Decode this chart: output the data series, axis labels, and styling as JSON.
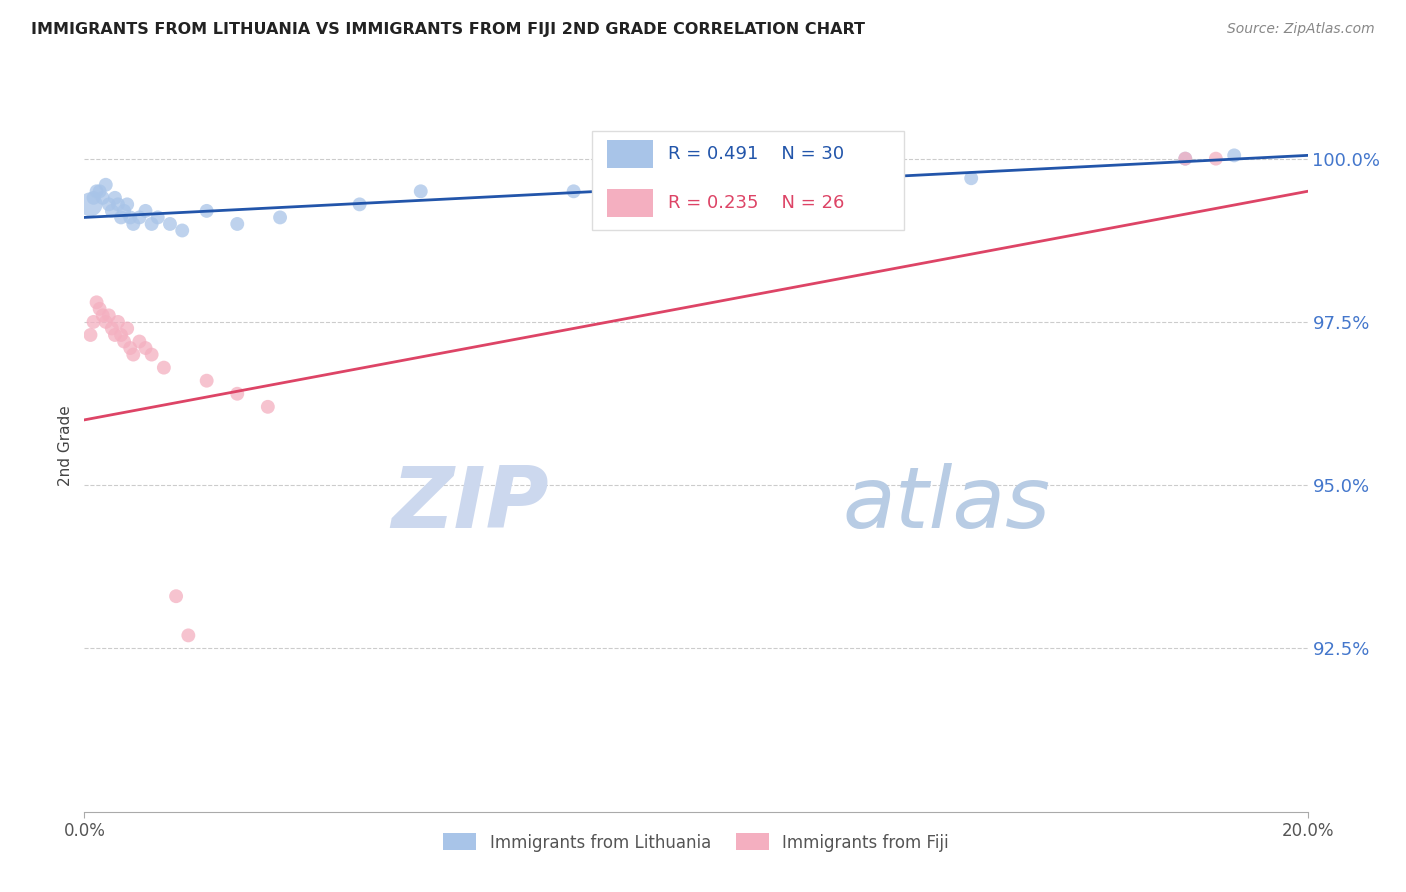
{
  "title": "IMMIGRANTS FROM LITHUANIA VS IMMIGRANTS FROM FIJI 2ND GRADE CORRELATION CHART",
  "source": "Source: ZipAtlas.com",
  "ylabel": "2nd Grade",
  "ytick_values": [
    100.0,
    97.5,
    95.0,
    92.5
  ],
  "xmin": 0.0,
  "xmax": 20.0,
  "ymin": 90.0,
  "ymax": 101.2,
  "legend_label1": "Immigrants from Lithuania",
  "legend_label2": "Immigrants from Fiji",
  "blue_color": "#a8c4e8",
  "pink_color": "#f4afc0",
  "blue_line_color": "#2255aa",
  "pink_line_color": "#dd4466",
  "blue_scatter_x": [
    0.1,
    0.15,
    0.2,
    0.25,
    0.3,
    0.35,
    0.4,
    0.45,
    0.5,
    0.55,
    0.6,
    0.65,
    0.7,
    0.75,
    0.8,
    0.9,
    1.0,
    1.1,
    1.2,
    1.4,
    1.6,
    2.0,
    2.5,
    3.2,
    4.5,
    5.5,
    8.0,
    14.5,
    18.0,
    18.8
  ],
  "blue_scatter_y": [
    99.3,
    99.4,
    99.5,
    99.5,
    99.4,
    99.6,
    99.3,
    99.2,
    99.4,
    99.3,
    99.1,
    99.2,
    99.3,
    99.1,
    99.0,
    99.1,
    99.2,
    99.0,
    99.1,
    99.0,
    98.9,
    99.2,
    99.0,
    99.1,
    99.3,
    99.5,
    99.5,
    99.7,
    100.0,
    100.05
  ],
  "blue_scatter_sizes": [
    60,
    20,
    20,
    20,
    20,
    20,
    20,
    20,
    20,
    20,
    20,
    20,
    20,
    20,
    20,
    20,
    20,
    20,
    20,
    20,
    20,
    20,
    20,
    20,
    20,
    20,
    20,
    20,
    20,
    20
  ],
  "pink_scatter_x": [
    0.1,
    0.15,
    0.2,
    0.25,
    0.3,
    0.35,
    0.4,
    0.45,
    0.5,
    0.55,
    0.6,
    0.65,
    0.7,
    0.75,
    0.8,
    0.9,
    1.0,
    1.1,
    1.3,
    1.5,
    1.7,
    2.0,
    2.5,
    3.0,
    18.0,
    18.5
  ],
  "pink_scatter_y": [
    97.3,
    97.5,
    97.8,
    97.7,
    97.6,
    97.5,
    97.6,
    97.4,
    97.3,
    97.5,
    97.3,
    97.2,
    97.4,
    97.1,
    97.0,
    97.2,
    97.1,
    97.0,
    96.8,
    93.3,
    92.7,
    96.6,
    96.4,
    96.2,
    100.0,
    100.0
  ],
  "pink_scatter_sizes": [
    20,
    20,
    20,
    20,
    20,
    20,
    20,
    20,
    20,
    20,
    20,
    20,
    20,
    20,
    20,
    20,
    20,
    20,
    20,
    20,
    20,
    20,
    20,
    20,
    20,
    20
  ],
  "blue_line_x0": 0.0,
  "blue_line_x1": 20.0,
  "blue_line_y0": 99.1,
  "blue_line_y1": 100.05,
  "pink_line_x0": 0.0,
  "pink_line_x1": 20.0,
  "pink_line_y0": 96.0,
  "pink_line_y1": 99.5,
  "background_color": "#ffffff",
  "grid_color": "#cccccc",
  "title_color": "#222222",
  "right_axis_color": "#4477cc",
  "watermark_zip_color": "#ccd8ee",
  "watermark_atlas_color": "#b8cce4"
}
